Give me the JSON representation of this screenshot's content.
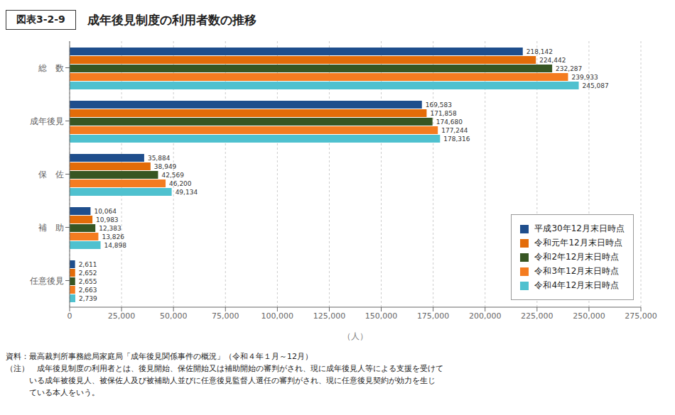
{
  "chart_data": {
    "type": "bar",
    "orientation": "horizontal",
    "title": "成年後見制度の利用者数の推移",
    "annotations": [
      "図表3-2-9",
      "資料：最高裁判所事務総局家庭局「成年後見関係事件の概況」（令和４年１月～12月）",
      "（注）　成年後見制度の利用者とは、後見開始、保佐開始又は補助開始の審判がされ、現に成年後見人等による支援を受けて",
      "　　　いる成年被後見人、被保佐人及び被補助人並びに任意後見監督人選任の審判がされ、現に任意後見契約が効力を生じ",
      "　　　ている本人をいう。"
    ],
    "categories": [
      "総　数",
      "成年後見",
      "保　佐",
      "補　助",
      "任意後見"
    ],
    "series": [
      {
        "name": "平成30年12月末日時点",
        "color": "#1f4e8c",
        "values": [
          218142,
          169583,
          35884,
          10064,
          2611
        ],
        "value_labels": [
          "218,142",
          "169,583",
          "35,884",
          "10,064",
          "2,611"
        ]
      },
      {
        "name": "令和元年12月末日時点",
        "color": "#e36c09",
        "values": [
          224442,
          171858,
          38949,
          10983,
          2652
        ],
        "value_labels": [
          "224,442",
          "171,858",
          "38,949",
          "10,983",
          "2,652"
        ]
      },
      {
        "name": "令和2年12月末日時点",
        "color": "#375623",
        "values": [
          232287,
          174680,
          42569,
          12383,
          2655
        ],
        "value_labels": [
          "232,287",
          "174,680",
          "42,569",
          "12,383",
          "2,655"
        ]
      },
      {
        "name": "令和3年12月末日時点",
        "color": "#f47c20",
        "values": [
          239933,
          177244,
          46200,
          13826,
          2663
        ],
        "value_labels": [
          "239,933",
          "177,244",
          "46,200",
          "13,826",
          "2,663"
        ]
      },
      {
        "name": "令和4年12月末日時点",
        "color": "#4fc1cf",
        "values": [
          245087,
          178316,
          49134,
          14898,
          2739
        ],
        "value_labels": [
          "245,087",
          "178,316",
          "49,134",
          "14,898",
          "2,739"
        ]
      }
    ],
    "xlabel": "（人）",
    "xlim": [
      0,
      275000
    ],
    "xticks": [
      0,
      {
        "value": 25000,
        "label": "25,000"
      },
      {
        "value": 50000,
        "label": "50,000"
      },
      {
        "value": 75000,
        "label": "75,000"
      },
      {
        "value": 100000,
        "label": "100,000"
      },
      {
        "value": 125000,
        "label": "125,000"
      },
      {
        "value": 150000,
        "label": "150,000"
      },
      {
        "value": 175000,
        "label": "175,000"
      },
      {
        "value": 200000,
        "label": "200,000"
      },
      {
        "value": 225000,
        "label": "225,000"
      },
      {
        "value": 250000,
        "label": "250,000"
      },
      {
        "value": 275000,
        "label": "275,000"
      }
    ],
    "grid": true,
    "legend": "lower right",
    "data_labels": true
  }
}
